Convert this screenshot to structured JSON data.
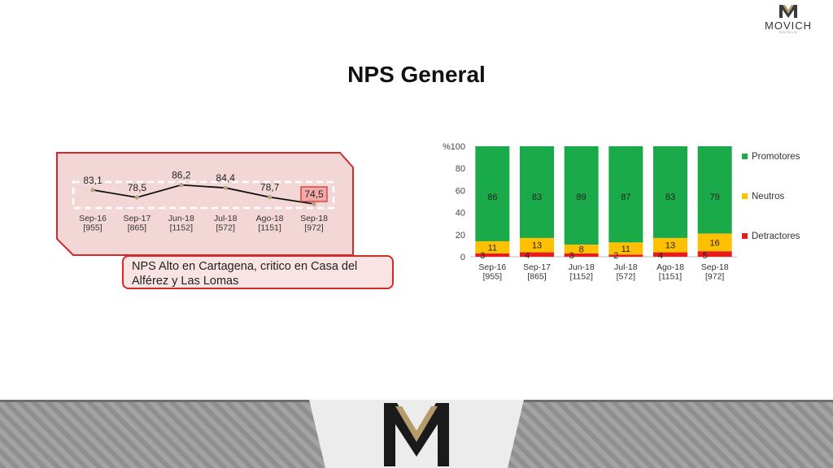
{
  "brand": {
    "name": "MOVICH",
    "tagline": "HOTELS"
  },
  "page": {
    "title": "NPS General"
  },
  "colors": {
    "accent": "#d12a2a",
    "promotores": "#1aaa4a",
    "neutros": "#ffc000",
    "detractores": "#e81c1c"
  },
  "callout": {
    "text": "NPS Alto en Cartagena, critico en Casa del Alférez y Las Lomas"
  },
  "chart_data": [
    {
      "type": "line",
      "categories": [
        "Sep-16\n[955]",
        "Sep-17\n[865]",
        "Jun-18\n[1152]",
        "Jul-18\n[572]",
        "Ago-18\n[1151]",
        "Sep-18\n[972]"
      ],
      "series": [
        {
          "values": [
            83.1,
            78.5,
            86.2,
            84.4,
            78.7,
            74.5
          ],
          "labels": [
            "83,1",
            "78,5",
            "86,2",
            "84,4",
            "78,7",
            "74,5"
          ]
        }
      ],
      "ylim": [
        50,
        100
      ],
      "highlight_index": 5
    },
    {
      "type": "bar",
      "stacked": true,
      "categories": [
        "Sep-16\n[955]",
        "Sep-17\n[865]",
        "Jun-18\n[1152]",
        "Jul-18\n[572]",
        "Ago-18\n[1151]",
        "Sep-18\n[972]"
      ],
      "series": [
        {
          "name": "Detractores",
          "color": "#e81c1c",
          "values": [
            3,
            4,
            3,
            2,
            4,
            5
          ]
        },
        {
          "name": "Neutros",
          "color": "#ffc000",
          "values": [
            11,
            13,
            8,
            11,
            13,
            16
          ]
        },
        {
          "name": "Promotores",
          "color": "#1aaa4a",
          "values": [
            86,
            83,
            89,
            87,
            83,
            79
          ]
        }
      ],
      "ylabel": "%",
      "ylim": [
        0,
        100
      ],
      "yticks": [
        0,
        20,
        40,
        60,
        80,
        100
      ],
      "legend": "right"
    }
  ]
}
